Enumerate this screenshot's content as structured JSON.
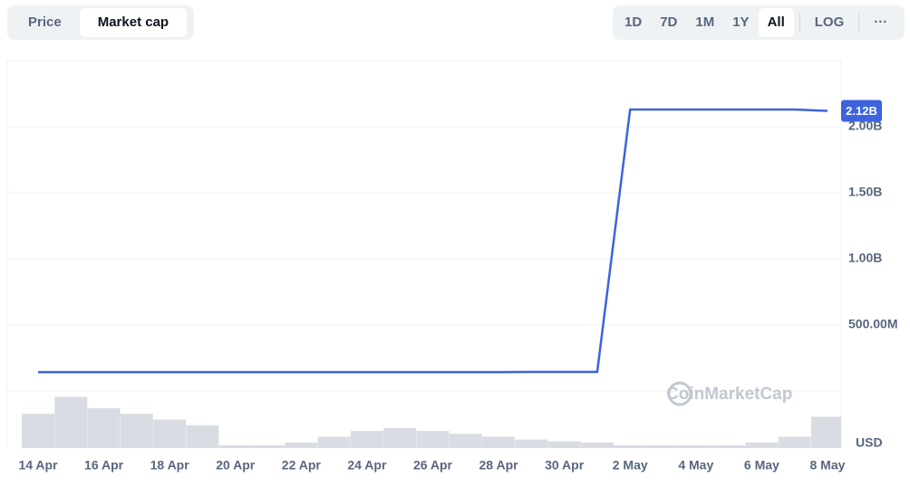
{
  "tabs": [
    "Price",
    "Market cap"
  ],
  "selected_tab": 1,
  "ranges": [
    "1D",
    "7D",
    "1M",
    "1Y",
    "All"
  ],
  "selected_range": 4,
  "log_button": "LOG",
  "more_button": "···",
  "chart_data": {
    "type": "line",
    "categories": [
      "14 Apr",
      null,
      "16 Apr",
      null,
      "18 Apr",
      null,
      "20 Apr",
      null,
      "22 Apr",
      null,
      "24 Apr",
      null,
      "26 Apr",
      null,
      "28 Apr",
      null,
      "30 Apr",
      null,
      "2 May",
      null,
      "4 May",
      null,
      "6 May",
      null,
      "8 May"
    ],
    "series": [
      {
        "color": "#3d63dd",
        "values": [
          143000000,
          143000000,
          143000000,
          143000000,
          143000000,
          143000000,
          143000000,
          143000000,
          143000000,
          143000000,
          143000000,
          143000000,
          143000000,
          143000000,
          143000000,
          145000000,
          145000000,
          145000000,
          2130000000,
          2130000000,
          2130000000,
          2130000000,
          2130000000,
          2130000000,
          2120000000
        ],
        "value_labels": [
          null,
          null,
          null,
          null,
          null,
          null,
          null,
          null,
          null,
          null,
          null,
          null,
          null,
          null,
          null,
          null,
          null,
          null,
          null,
          null,
          null,
          null,
          null,
          null,
          "2.12B"
        ]
      }
    ],
    "volume": {
      "color": "#d9dde3",
      "ylim": [
        0,
        1
      ],
      "values": [
        0.6,
        0.9,
        0.7,
        0.6,
        0.5,
        0.4,
        0.05,
        0.05,
        0.1,
        0.2,
        0.3,
        0.35,
        0.3,
        0.25,
        0.2,
        0.15,
        0.12,
        0.1,
        0.05,
        0.05,
        0.05,
        0.05,
        0.1,
        0.2,
        0.55
      ]
    },
    "ylim": [
      0,
      2500000000
    ],
    "yticks": [
      {
        "value": 500000000,
        "label": "500.00M"
      },
      {
        "value": 1000000000,
        "label": "1.00B"
      },
      {
        "value": 1500000000,
        "label": "1.50B"
      },
      {
        "value": 2000000000,
        "label": "2.00B"
      }
    ],
    "grid": true,
    "currency": "USD",
    "watermark": "CoinMarketCap"
  }
}
